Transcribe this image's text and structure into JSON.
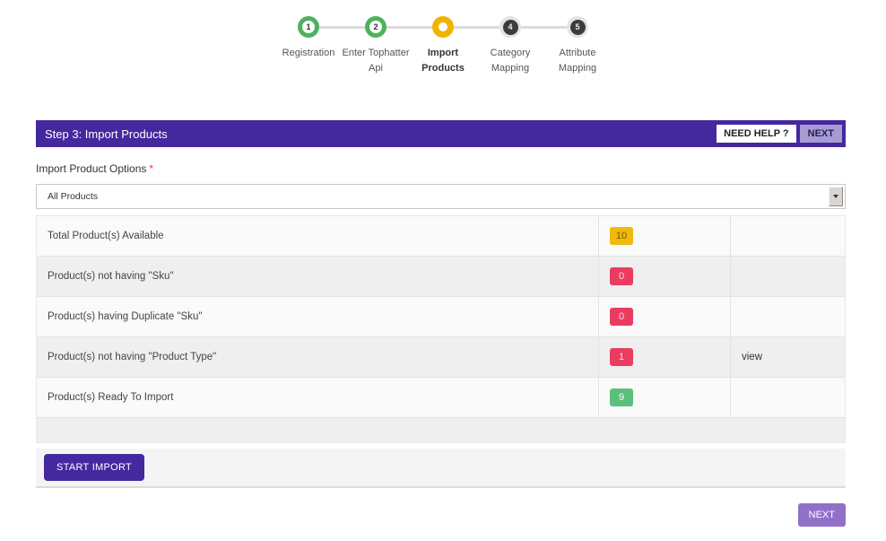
{
  "colors": {
    "purple": "#44289e",
    "lavender": "#9170ca",
    "header_next_bg": "#a79bd2",
    "step_done": "#4db25e",
    "step_active": "#f0b400",
    "step_pending": "#3b3b3b",
    "badge_yellow": "#f0b90d",
    "badge_red": "#ea3c61",
    "badge_green": "#5dbf7c"
  },
  "stepper": {
    "steps": [
      {
        "number": "1",
        "label": "Registration",
        "state": "done"
      },
      {
        "number": "2",
        "label": "Enter Tophatter Api",
        "state": "done"
      },
      {
        "number": "3",
        "label": "Import Products",
        "state": "active"
      },
      {
        "number": "4",
        "label": "Category Mapping",
        "state": "pending"
      },
      {
        "number": "5",
        "label": "Attribute Mapping",
        "state": "pending"
      }
    ]
  },
  "panel": {
    "title": "Step 3: Import Products",
    "need_help_label": "NEED HELP ?",
    "next_label": "NEXT"
  },
  "form": {
    "label": "Import Product Options",
    "required_mark": "*",
    "select_value": "All Products"
  },
  "table": {
    "rows": [
      {
        "label": "Total Product(s) Available",
        "count": "10",
        "count_bg": "#f0b90d",
        "count_text": "#6f5b07",
        "action": ""
      },
      {
        "label": "Product(s) not having \"Sku\"",
        "count": "0",
        "count_bg": "#ea3c61",
        "count_text": "#ffd9e1",
        "action": ""
      },
      {
        "label": "Product(s) having Duplicate \"Sku\"",
        "count": "0",
        "count_bg": "#ea3c61",
        "count_text": "#ffd9e1",
        "action": ""
      },
      {
        "label": "Product(s) not having \"Product Type\"",
        "count": "1",
        "count_bg": "#ea3c61",
        "count_text": "#ffd9e1",
        "action": "view"
      },
      {
        "label": "Product(s) Ready To Import",
        "count": "9",
        "count_bg": "#5dbf7c",
        "count_text": "#ffffff",
        "action": ""
      }
    ]
  },
  "footer": {
    "start_import_label": "START IMPORT",
    "next_label": "NEXT"
  }
}
